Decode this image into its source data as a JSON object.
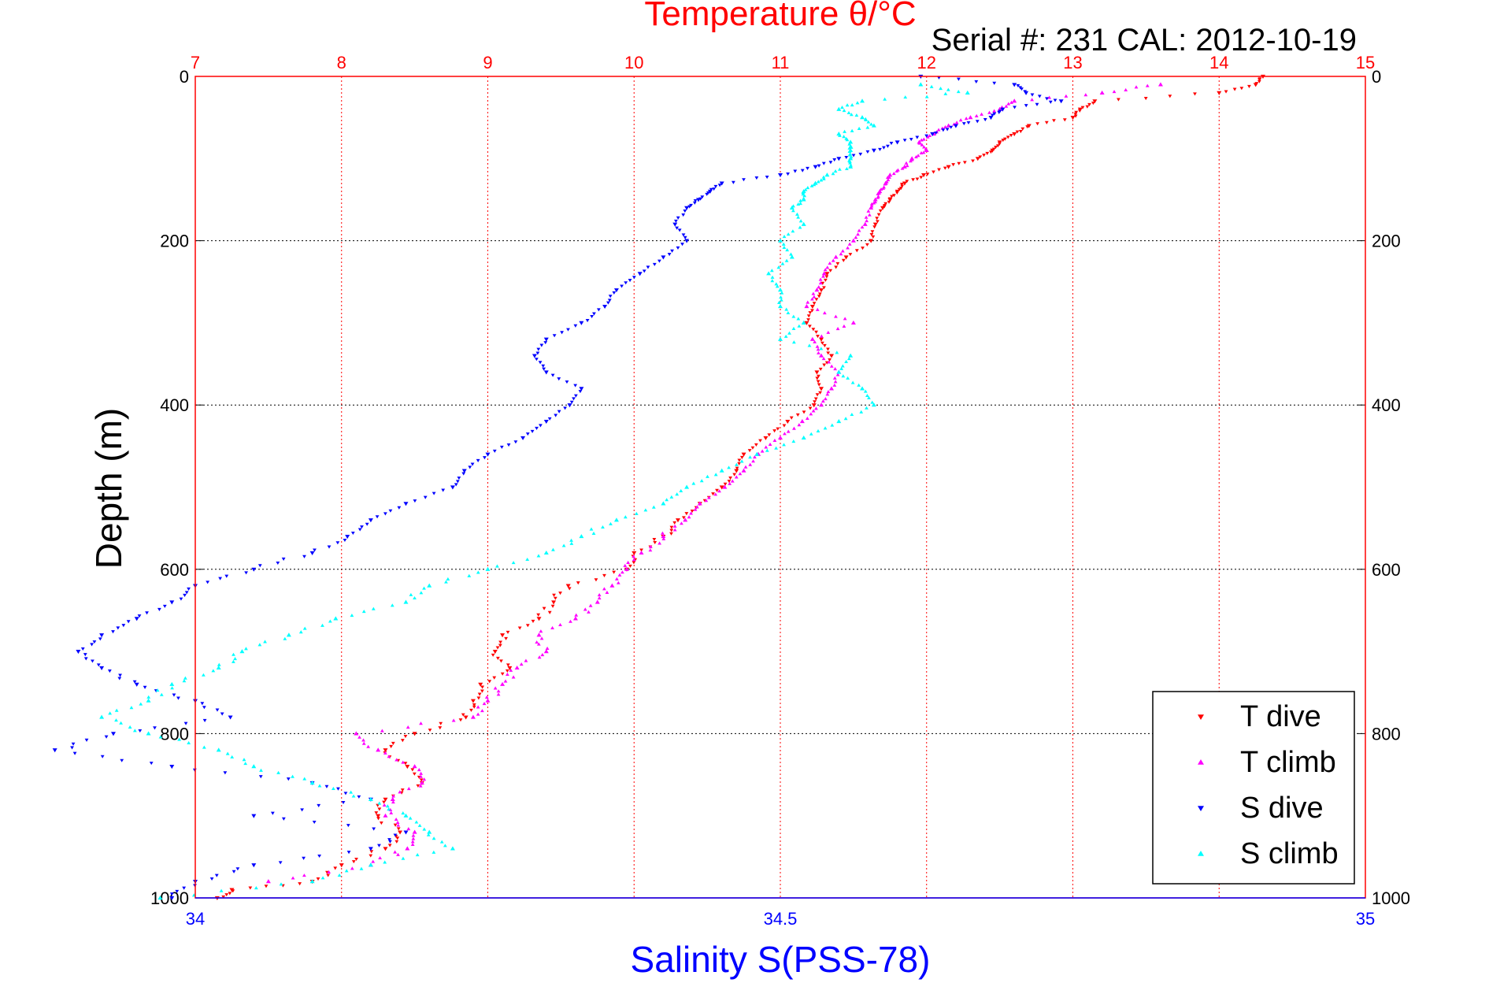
{
  "chart_data": {
    "type": "scatter",
    "title": "Temperature θ/°C",
    "subtitle": "Serial #: 231  CAL: 2012-10-19",
    "xlabel_top": "Temperature θ/°C",
    "xlabel_bottom": "Salinity S(PSS-78)",
    "ylabel": "Depth (m)",
    "temperature_axis": {
      "lim": [
        7,
        15
      ],
      "ticks": [
        "7",
        "8",
        "9",
        "10",
        "11",
        "12",
        "13",
        "14",
        "15"
      ],
      "color": "#ff0000"
    },
    "salinity_axis": {
      "lim": [
        34,
        35
      ],
      "ticks": [
        "34",
        "34.5",
        "35"
      ],
      "color": "#0000ff"
    },
    "depth_axis": {
      "lim": [
        0,
        1000
      ],
      "reversed": true,
      "ticks": [
        "0",
        "200",
        "400",
        "600",
        "800",
        "1000"
      ]
    },
    "grid": true,
    "legend": {
      "placement": "bottom-right",
      "entries": [
        "T dive",
        "T climb",
        "S dive",
        "S climb"
      ]
    },
    "series": [
      {
        "name": "T dive",
        "color": "#ff0000",
        "marker": "triangle-down",
        "axis": "temperature",
        "depth": [
          0,
          10,
          20,
          30,
          40,
          50,
          60,
          70,
          80,
          90,
          100,
          110,
          120,
          130,
          140,
          150,
          160,
          180,
          200,
          220,
          240,
          260,
          280,
          300,
          320,
          340,
          360,
          380,
          400,
          420,
          440,
          460,
          480,
          500,
          520,
          540,
          560,
          580,
          600,
          620,
          640,
          660,
          680,
          700,
          720,
          740,
          760,
          780,
          800,
          820,
          840,
          860,
          880,
          900,
          920,
          940,
          960,
          980,
          990,
          1000
        ],
        "value": [
          14.3,
          14.25,
          14.0,
          13.15,
          13.05,
          13.0,
          12.7,
          12.6,
          12.5,
          12.45,
          12.35,
          12.15,
          11.98,
          11.85,
          11.8,
          11.75,
          11.7,
          11.65,
          11.62,
          11.45,
          11.32,
          11.28,
          11.22,
          11.18,
          11.28,
          11.35,
          11.25,
          11.28,
          11.23,
          11.05,
          10.9,
          10.75,
          10.7,
          10.6,
          10.45,
          10.3,
          10.2,
          10.0,
          9.95,
          9.55,
          9.45,
          9.35,
          9.1,
          9.05,
          9.15,
          8.95,
          8.9,
          8.85,
          8.5,
          8.3,
          8.45,
          8.55,
          8.3,
          8.25,
          8.4,
          8.3,
          8.0,
          7.8,
          7.25,
          7.15
        ]
      },
      {
        "name": "T climb",
        "color": "#ff00ff",
        "marker": "triangle-up",
        "axis": "temperature",
        "depth": [
          10,
          20,
          30,
          40,
          50,
          60,
          70,
          80,
          90,
          100,
          110,
          120,
          130,
          140,
          150,
          160,
          180,
          200,
          220,
          240,
          260,
          280,
          300,
          320,
          340,
          360,
          380,
          400,
          420,
          440,
          460,
          480,
          500,
          520,
          540,
          560,
          580,
          600,
          620,
          640,
          660,
          680,
          700,
          720,
          740,
          760,
          780,
          800,
          820,
          840,
          860,
          880,
          900,
          920,
          940,
          960,
          980
        ],
        "value": [
          13.6,
          13.2,
          12.6,
          12.5,
          12.3,
          12.15,
          12.05,
          11.95,
          12.0,
          11.9,
          11.85,
          11.75,
          11.72,
          11.68,
          11.65,
          11.62,
          11.58,
          11.5,
          11.38,
          11.3,
          11.25,
          11.18,
          11.5,
          11.22,
          11.28,
          11.4,
          11.35,
          11.28,
          11.15,
          11.0,
          10.85,
          10.75,
          10.62,
          10.45,
          10.35,
          10.2,
          10.05,
          9.95,
          9.85,
          9.75,
          9.6,
          9.35,
          9.4,
          9.2,
          9.1,
          9.0,
          8.9,
          8.1,
          8.25,
          8.5,
          8.55,
          8.35,
          8.3,
          8.5,
          8.45,
          8.2,
          7.5
        ]
      },
      {
        "name": "S dive",
        "color": "#0000ff",
        "marker": "triangle-down",
        "axis": "salinity",
        "depth": [
          0,
          10,
          20,
          30,
          40,
          50,
          60,
          70,
          80,
          90,
          100,
          110,
          120,
          130,
          140,
          150,
          160,
          180,
          200,
          220,
          240,
          260,
          280,
          300,
          320,
          340,
          360,
          380,
          400,
          420,
          440,
          460,
          480,
          500,
          520,
          540,
          560,
          580,
          600,
          620,
          640,
          660,
          680,
          700,
          720,
          740,
          760,
          780,
          800,
          820,
          840,
          860,
          880,
          900,
          920,
          940,
          960,
          980,
          1000
        ],
        "salinity": [
          34.62,
          34.7,
          34.71,
          34.74,
          34.69,
          34.68,
          34.65,
          34.63,
          34.6,
          34.58,
          34.55,
          34.53,
          34.5,
          34.45,
          34.44,
          34.43,
          34.42,
          34.41,
          34.42,
          34.4,
          34.38,
          34.36,
          34.35,
          34.33,
          34.3,
          34.29,
          34.3,
          34.33,
          34.32,
          34.3,
          34.28,
          34.25,
          34.23,
          34.22,
          34.18,
          34.15,
          34.13,
          34.1,
          34.05,
          34.0,
          33.98,
          33.95,
          33.92,
          33.9,
          33.92,
          33.95,
          34.0,
          34.03,
          33.93,
          33.88,
          33.98,
          34.1,
          34.15,
          34.05,
          34.18,
          34.15,
          34.05,
          34.0,
          33.98
        ]
      },
      {
        "name": "S climb",
        "color": "#00ffff",
        "marker": "triangle-up",
        "axis": "salinity",
        "depth": [
          10,
          20,
          30,
          40,
          50,
          60,
          70,
          80,
          90,
          100,
          110,
          120,
          130,
          140,
          150,
          160,
          180,
          200,
          220,
          240,
          260,
          280,
          300,
          320,
          340,
          360,
          380,
          400,
          420,
          440,
          460,
          480,
          500,
          520,
          540,
          560,
          580,
          600,
          620,
          640,
          660,
          680,
          700,
          720,
          740,
          760,
          780,
          800,
          820,
          840,
          860,
          880,
          900,
          920,
          940,
          960,
          980,
          1000
        ],
        "salinity": [
          34.62,
          34.66,
          34.57,
          34.55,
          34.57,
          34.58,
          34.55,
          34.56,
          34.56,
          34.56,
          34.56,
          34.54,
          34.53,
          34.52,
          34.52,
          34.51,
          34.52,
          34.5,
          34.51,
          34.49,
          34.5,
          34.5,
          34.52,
          34.5,
          34.56,
          34.55,
          34.57,
          34.58,
          34.55,
          34.52,
          34.48,
          34.45,
          34.42,
          34.4,
          34.36,
          34.33,
          34.3,
          34.25,
          34.2,
          34.18,
          34.12,
          34.08,
          34.04,
          34.02,
          33.98,
          33.96,
          33.92,
          33.96,
          34.02,
          34.05,
          34.1,
          34.15,
          34.18,
          34.2,
          34.22,
          34.15,
          34.1,
          33.97
        ]
      }
    ]
  }
}
